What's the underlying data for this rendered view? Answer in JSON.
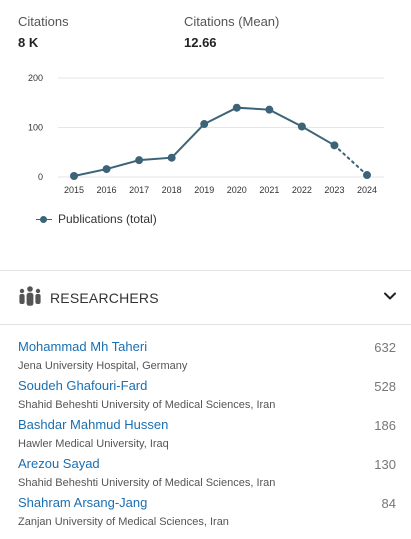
{
  "stats": {
    "citations": {
      "label": "Citations",
      "value": "8 K"
    },
    "mean": {
      "label": "Citations (Mean)",
      "value": "12.66"
    }
  },
  "chart_data": {
    "type": "line",
    "x": [
      "2015",
      "2016",
      "2017",
      "2018",
      "2019",
      "2020",
      "2021",
      "2022",
      "2023",
      "2024"
    ],
    "series": [
      {
        "name": "Publications (total)",
        "values": [
          2,
          16,
          34,
          39,
          107,
          140,
          136,
          102,
          64,
          4
        ],
        "color": "#3d6378",
        "dotted_last_segment": true
      }
    ],
    "yticks": [
      0,
      100,
      200
    ],
    "ylim": [
      0,
      200
    ],
    "grid": true,
    "legend_position": "bottom-left"
  },
  "legend": {
    "label": "Publications (total)"
  },
  "researchers_section": {
    "title": "RESEARCHERS",
    "icon": "people-icon",
    "toggle_icon": "chevron-down-icon"
  },
  "researchers": [
    {
      "name": "Mohammad Mh Taheri",
      "affiliation": "Jena University Hospital, Germany",
      "count": "632"
    },
    {
      "name": "Soudeh Ghafouri-Fard",
      "affiliation": "Shahid Beheshti University of Medical Sciences, Iran",
      "count": "528"
    },
    {
      "name": "Bashdar Mahmud Hussen",
      "affiliation": "Hawler Medical University, Iraq",
      "count": "186"
    },
    {
      "name": "Arezou Sayad",
      "affiliation": "Shahid Beheshti University of Medical Sciences, Iran",
      "count": "130"
    },
    {
      "name": "Shahram Arsang-Jang",
      "affiliation": "Zanjan University of Medical Sciences, Iran",
      "count": "84"
    }
  ]
}
